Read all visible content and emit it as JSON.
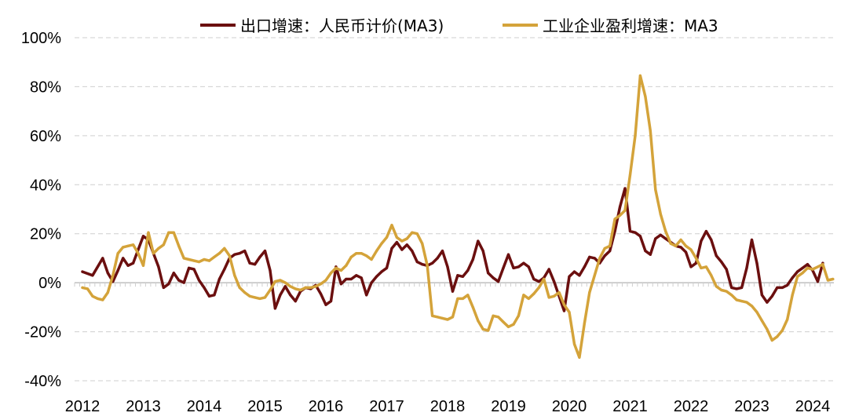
{
  "chart_data": {
    "type": "line",
    "title": "",
    "xlabel": "",
    "ylabel": "",
    "ylim": [
      -40,
      100
    ],
    "xlim": [
      "2012-01",
      "2024-06"
    ],
    "y_ticks": [
      "100%",
      "80%",
      "60%",
      "40%",
      "20%",
      "0%",
      "-20%",
      "-40%"
    ],
    "x_ticks": [
      "2012",
      "2013",
      "2014",
      "2015",
      "2016",
      "2017",
      "2018",
      "2019",
      "2020",
      "2021",
      "2022",
      "2023",
      "2024"
    ],
    "grid": "horizontal dashed",
    "legend_position": "top",
    "series": [
      {
        "name": "出口增速：人民币计价(MA3)",
        "color": "#6b0f0f",
        "points": [
          [
            "2012-01",
            4.5
          ],
          [
            "2012-03",
            3.0
          ],
          [
            "2012-05",
            10.0
          ],
          [
            "2012-06",
            4.0
          ],
          [
            "2012-07",
            0.5
          ],
          [
            "2012-08",
            5.0
          ],
          [
            "2012-09",
            10.0
          ],
          [
            "2012-10",
            7.0
          ],
          [
            "2012-11",
            8.0
          ],
          [
            "2012-12",
            13.5
          ],
          [
            "2013-01",
            19.0
          ],
          [
            "2013-02",
            17.5
          ],
          [
            "2013-03",
            12.0
          ],
          [
            "2013-04",
            6.5
          ],
          [
            "2013-05",
            -2.0
          ],
          [
            "2013-06",
            -0.5
          ],
          [
            "2013-07",
            4.0
          ],
          [
            "2013-08",
            1.0
          ],
          [
            "2013-09",
            0.0
          ],
          [
            "2013-10",
            6.0
          ],
          [
            "2013-11",
            5.5
          ],
          [
            "2013-12",
            1.0
          ],
          [
            "2014-01",
            -2.0
          ],
          [
            "2014-02",
            -5.5
          ],
          [
            "2014-03",
            -5.0
          ],
          [
            "2014-04",
            1.5
          ],
          [
            "2014-05",
            5.5
          ],
          [
            "2014-06",
            10.0
          ],
          [
            "2014-07",
            11.5
          ],
          [
            "2014-08",
            12.0
          ],
          [
            "2014-09",
            13.0
          ],
          [
            "2014-10",
            8.0
          ],
          [
            "2014-11",
            7.5
          ],
          [
            "2014-12",
            10.5
          ],
          [
            "2015-01",
            13.0
          ],
          [
            "2015-02",
            5.0
          ],
          [
            "2015-03",
            -10.5
          ],
          [
            "2015-04",
            -5.0
          ],
          [
            "2015-05",
            -1.5
          ],
          [
            "2015-06",
            -5.0
          ],
          [
            "2015-07",
            -7.5
          ],
          [
            "2015-08",
            -3.5
          ],
          [
            "2015-09",
            -2.0
          ],
          [
            "2015-10",
            -2.5
          ],
          [
            "2015-11",
            -1.0
          ],
          [
            "2015-12",
            -4.5
          ],
          [
            "2016-01",
            -9.0
          ],
          [
            "2016-02",
            -7.5
          ],
          [
            "2016-03",
            6.5
          ],
          [
            "2016-04",
            -0.5
          ],
          [
            "2016-05",
            1.5
          ],
          [
            "2016-06",
            1.5
          ],
          [
            "2016-07",
            3.0
          ],
          [
            "2016-08",
            2.0
          ],
          [
            "2016-09",
            -5.0
          ],
          [
            "2016-10",
            0.0
          ],
          [
            "2016-11",
            2.5
          ],
          [
            "2016-12",
            4.5
          ],
          [
            "2017-01",
            6.0
          ],
          [
            "2017-02",
            14.0
          ],
          [
            "2017-03",
            16.5
          ],
          [
            "2017-04",
            13.5
          ],
          [
            "2017-05",
            15.5
          ],
          [
            "2017-06",
            13.0
          ],
          [
            "2017-07",
            8.5
          ],
          [
            "2017-08",
            7.5
          ],
          [
            "2017-09",
            7.0
          ],
          [
            "2017-10",
            8.0
          ],
          [
            "2017-11",
            10.0
          ],
          [
            "2017-12",
            13.0
          ],
          [
            "2018-01",
            6.5
          ],
          [
            "2018-02",
            -3.5
          ],
          [
            "2018-03",
            3.0
          ],
          [
            "2018-04",
            2.5
          ],
          [
            "2018-05",
            5.0
          ],
          [
            "2018-06",
            9.5
          ],
          [
            "2018-07",
            17.0
          ],
          [
            "2018-08",
            13.0
          ],
          [
            "2018-09",
            4.0
          ],
          [
            "2018-10",
            2.0
          ],
          [
            "2018-11",
            0.5
          ],
          [
            "2018-12",
            6.0
          ],
          [
            "2019-01",
            11.5
          ],
          [
            "2019-02",
            6.0
          ],
          [
            "2019-03",
            6.5
          ],
          [
            "2019-04",
            8.0
          ],
          [
            "2019-05",
            6.5
          ],
          [
            "2019-06",
            1.5
          ],
          [
            "2019-07",
            0.5
          ],
          [
            "2019-08",
            2.0
          ],
          [
            "2019-09",
            5.5
          ],
          [
            "2019-10",
            0.5
          ],
          [
            "2019-11",
            -5.5
          ],
          [
            "2019-12",
            -11.5
          ],
          [
            "2020-01",
            2.5
          ],
          [
            "2020-02",
            4.5
          ],
          [
            "2020-03",
            3.0
          ],
          [
            "2020-04",
            6.5
          ],
          [
            "2020-05",
            10.5
          ],
          [
            "2020-06",
            10.0
          ],
          [
            "2020-07",
            8.0
          ],
          [
            "2020-08",
            11.0
          ],
          [
            "2020-09",
            13.0
          ],
          [
            "2020-10",
            21.0
          ],
          [
            "2020-11",
            31.0
          ],
          [
            "2020-12",
            38.5
          ],
          [
            "2021-01",
            21.0
          ],
          [
            "2021-02",
            20.5
          ],
          [
            "2021-03",
            19.0
          ],
          [
            "2021-04",
            13.0
          ],
          [
            "2021-05",
            11.5
          ],
          [
            "2021-06",
            18.0
          ],
          [
            "2021-07",
            19.5
          ],
          [
            "2021-08",
            18.0
          ],
          [
            "2021-09",
            16.5
          ],
          [
            "2021-10",
            15.0
          ],
          [
            "2021-11",
            14.5
          ],
          [
            "2021-12",
            12.5
          ],
          [
            "2022-01",
            6.5
          ],
          [
            "2022-02",
            8.0
          ],
          [
            "2022-03",
            17.0
          ],
          [
            "2022-04",
            21.0
          ],
          [
            "2022-05",
            17.5
          ],
          [
            "2022-06",
            11.0
          ],
          [
            "2022-07",
            8.5
          ],
          [
            "2022-08",
            5.5
          ],
          [
            "2022-09",
            -2.0
          ],
          [
            "2022-10",
            -2.5
          ],
          [
            "2022-11",
            -2.0
          ],
          [
            "2022-12",
            6.0
          ],
          [
            "2023-01",
            17.5
          ],
          [
            "2023-02",
            8.0
          ],
          [
            "2023-03",
            -5.0
          ],
          [
            "2023-04",
            -8.0
          ],
          [
            "2023-05",
            -5.5
          ],
          [
            "2023-06",
            -2.0
          ],
          [
            "2023-07",
            -2.0
          ],
          [
            "2023-08",
            -1.0
          ],
          [
            "2023-09",
            2.0
          ],
          [
            "2023-10",
            4.5
          ],
          [
            "2023-11",
            6.0
          ],
          [
            "2023-12",
            7.5
          ],
          [
            "2024-01",
            5.0
          ],
          [
            "2024-02",
            0.5
          ],
          [
            "2024-03",
            8.0
          ]
        ]
      },
      {
        "name": "工业企业盈利增速：MA3",
        "color": "#d4a33a",
        "points": [
          [
            "2012-01",
            -2.0
          ],
          [
            "2012-02",
            -2.5
          ],
          [
            "2012-03",
            -5.5
          ],
          [
            "2012-04",
            -6.5
          ],
          [
            "2012-05",
            -7.0
          ],
          [
            "2012-06",
            -4.0
          ],
          [
            "2012-07",
            3.0
          ],
          [
            "2012-08",
            12.0
          ],
          [
            "2012-09",
            14.5
          ],
          [
            "2012-10",
            15.0
          ],
          [
            "2012-11",
            15.5
          ],
          [
            "2012-12",
            12.0
          ],
          [
            "2013-01",
            7.0
          ],
          [
            "2013-02",
            20.5
          ],
          [
            "2013-03",
            12.0
          ],
          [
            "2013-04",
            14.0
          ],
          [
            "2013-05",
            15.5
          ],
          [
            "2013-06",
            20.5
          ],
          [
            "2013-07",
            20.5
          ],
          [
            "2013-08",
            15.0
          ],
          [
            "2013-09",
            10.0
          ],
          [
            "2013-10",
            9.5
          ],
          [
            "2013-11",
            9.0
          ],
          [
            "2013-12",
            8.5
          ],
          [
            "2014-01",
            9.5
          ],
          [
            "2014-02",
            9.0
          ],
          [
            "2014-03",
            10.5
          ],
          [
            "2014-04",
            12.0
          ],
          [
            "2014-05",
            14.0
          ],
          [
            "2014-06",
            11.0
          ],
          [
            "2014-07",
            3.0
          ],
          [
            "2014-08",
            -2.0
          ],
          [
            "2014-09",
            -4.0
          ],
          [
            "2014-10",
            -5.5
          ],
          [
            "2014-11",
            -6.0
          ],
          [
            "2014-12",
            -6.5
          ],
          [
            "2015-01",
            -6.0
          ],
          [
            "2015-02",
            -3.0
          ],
          [
            "2015-03",
            0.5
          ],
          [
            "2015-04",
            1.0
          ],
          [
            "2015-05",
            0.0
          ],
          [
            "2015-06",
            -1.5
          ],
          [
            "2015-07",
            -2.5
          ],
          [
            "2015-08",
            -3.0
          ],
          [
            "2015-09",
            -2.0
          ],
          [
            "2015-10",
            -2.0
          ],
          [
            "2015-11",
            -1.5
          ],
          [
            "2015-12",
            -0.5
          ],
          [
            "2016-01",
            1.0
          ],
          [
            "2016-02",
            4.0
          ],
          [
            "2016-03",
            6.0
          ],
          [
            "2016-04",
            5.0
          ],
          [
            "2016-05",
            7.0
          ],
          [
            "2016-06",
            10.5
          ],
          [
            "2016-07",
            12.0
          ],
          [
            "2016-08",
            12.0
          ],
          [
            "2016-09",
            11.0
          ],
          [
            "2016-10",
            9.5
          ],
          [
            "2016-11",
            13.0
          ],
          [
            "2016-12",
            16.0
          ],
          [
            "2017-01",
            18.5
          ],
          [
            "2017-02",
            23.5
          ],
          [
            "2017-03",
            18.5
          ],
          [
            "2017-04",
            17.0
          ],
          [
            "2017-05",
            18.0
          ],
          [
            "2017-06",
            20.5
          ],
          [
            "2017-07",
            20.0
          ],
          [
            "2017-08",
            16.0
          ],
          [
            "2017-09",
            7.0
          ],
          [
            "2017-10",
            -13.5
          ],
          [
            "2017-11",
            -14.0
          ],
          [
            "2017-12",
            -14.5
          ],
          [
            "2018-01",
            -15.0
          ],
          [
            "2018-02",
            -14.0
          ],
          [
            "2018-03",
            -6.5
          ],
          [
            "2018-04",
            -6.5
          ],
          [
            "2018-05",
            -5.0
          ],
          [
            "2018-06",
            -10.0
          ],
          [
            "2018-07",
            -15.5
          ],
          [
            "2018-08",
            -19.0
          ],
          [
            "2018-09",
            -19.5
          ],
          [
            "2018-10",
            -13.5
          ],
          [
            "2018-11",
            -14.0
          ],
          [
            "2018-12",
            -16.0
          ],
          [
            "2019-01",
            -18.0
          ],
          [
            "2019-02",
            -17.0
          ],
          [
            "2019-03",
            -13.5
          ],
          [
            "2019-04",
            -5.0
          ],
          [
            "2019-05",
            -6.5
          ],
          [
            "2019-06",
            -4.5
          ],
          [
            "2019-07",
            -2.0
          ],
          [
            "2019-08",
            1.5
          ],
          [
            "2019-09",
            -6.0
          ],
          [
            "2019-10",
            -5.5
          ],
          [
            "2019-11",
            -4.0
          ],
          [
            "2019-12",
            -9.0
          ],
          [
            "2020-01",
            -12.0
          ],
          [
            "2020-02",
            -25.0
          ],
          [
            "2020-03",
            -30.5
          ],
          [
            "2020-04",
            -16.5
          ],
          [
            "2020-05",
            -4.0
          ],
          [
            "2020-06",
            3.0
          ],
          [
            "2020-07",
            10.0
          ],
          [
            "2020-08",
            14.0
          ],
          [
            "2020-09",
            15.0
          ],
          [
            "2020-10",
            26.0
          ],
          [
            "2020-11",
            27.5
          ],
          [
            "2020-12",
            29.5
          ],
          [
            "2021-01",
            44.0
          ],
          [
            "2021-02",
            60.0
          ],
          [
            "2021-03",
            84.5
          ],
          [
            "2021-04",
            76.0
          ],
          [
            "2021-05",
            62.0
          ],
          [
            "2021-06",
            38.0
          ],
          [
            "2021-07",
            28.0
          ],
          [
            "2021-08",
            21.0
          ],
          [
            "2021-09",
            16.0
          ],
          [
            "2021-10",
            15.0
          ],
          [
            "2021-11",
            17.5
          ],
          [
            "2021-12",
            15.0
          ],
          [
            "2022-01",
            13.5
          ],
          [
            "2022-02",
            10.0
          ],
          [
            "2022-03",
            6.0
          ],
          [
            "2022-04",
            6.5
          ],
          [
            "2022-05",
            3.0
          ],
          [
            "2022-06",
            -1.5
          ],
          [
            "2022-07",
            -3.0
          ],
          [
            "2022-08",
            -3.5
          ],
          [
            "2022-09",
            -5.0
          ],
          [
            "2022-10",
            -7.0
          ],
          [
            "2022-11",
            -7.5
          ],
          [
            "2022-12",
            -8.0
          ],
          [
            "2023-01",
            -9.5
          ],
          [
            "2023-02",
            -12.0
          ],
          [
            "2023-03",
            -15.5
          ],
          [
            "2023-04",
            -19.0
          ],
          [
            "2023-05",
            -23.5
          ],
          [
            "2023-06",
            -22.0
          ],
          [
            "2023-07",
            -19.5
          ],
          [
            "2023-08",
            -15.0
          ],
          [
            "2023-09",
            -5.0
          ],
          [
            "2023-10",
            2.5
          ],
          [
            "2023-11",
            4.0
          ],
          [
            "2023-12",
            6.0
          ],
          [
            "2024-01",
            5.5
          ],
          [
            "2024-02",
            6.5
          ],
          [
            "2024-03",
            7.5
          ],
          [
            "2024-04",
            1.0
          ],
          [
            "2024-05",
            1.5
          ]
        ]
      }
    ]
  }
}
